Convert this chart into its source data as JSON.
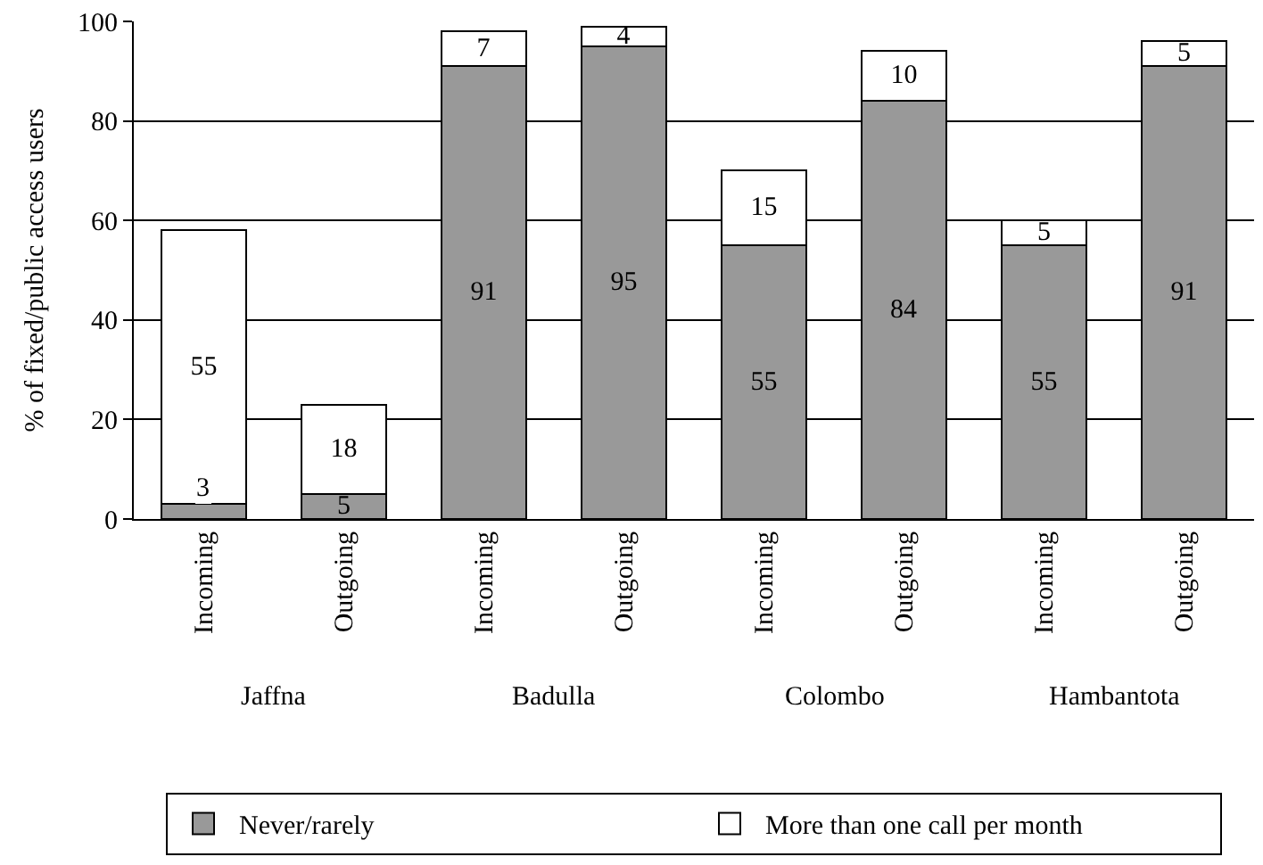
{
  "chart_data": {
    "type": "bar",
    "stacked": true,
    "ylabel": "% of fixed/public access users",
    "categories": [
      "Incoming",
      "Outgoing",
      "Incoming",
      "Outgoing",
      "Incoming",
      "Outgoing",
      "Incoming",
      "Outgoing"
    ],
    "annotations": [
      "Jaffna",
      "Badulla",
      "Colombo",
      "Hambantota"
    ],
    "series": [
      {
        "name": "Never/rarely",
        "color": "#999999",
        "values": [
          3,
          5,
          91,
          95,
          55,
          84,
          55,
          91
        ]
      },
      {
        "name": "More than one call per month",
        "color": "#ffffff",
        "values": [
          55,
          18,
          7,
          4,
          15,
          10,
          5,
          5
        ]
      }
    ],
    "ylim": [
      0,
      100
    ],
    "yticks": [
      0,
      20,
      40,
      60,
      80,
      100
    ],
    "grid": "y",
    "legend": "bottom",
    "data_labels": true
  }
}
